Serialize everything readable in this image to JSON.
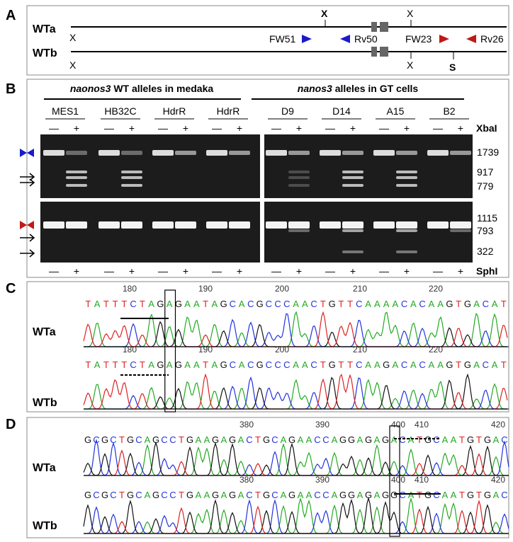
{
  "panel_a": {
    "label": "A",
    "wta": "WTa",
    "wtb": "WTb",
    "xbai_site": "X",
    "sphi_site": "S",
    "primers": [
      "FW51",
      "Rv50",
      "FW23",
      "Rv26"
    ]
  },
  "panel_b": {
    "label": "B",
    "group_left": {
      "gene": "naonos3",
      "text": "WT alleles in medaka"
    },
    "group_right": {
      "gene": "nanos3",
      "text": "alleles in GT cells"
    },
    "lanes": [
      "MES1",
      "HB32C",
      "HdrR",
      "HdrR",
      "D9",
      "D14",
      "A15",
      "B2"
    ],
    "minus": "—",
    "plus": "+",
    "enzyme_top": "XbaI",
    "enzyme_bottom": "SphI",
    "sizes_top": [
      1739,
      917,
      779
    ],
    "sizes_bottom": [
      1115,
      793,
      322
    ]
  },
  "panel_c": {
    "label": "C",
    "wta": "WTa",
    "wtb": "WTb",
    "ticks_a": [
      180,
      190,
      200,
      210,
      220
    ],
    "seq_a": "TATTTCTAGAGAATAGCACGCCCAACTGTTCAAAACACAAGTGACAT",
    "ticks_b": [
      180,
      190,
      200,
      210,
      220
    ],
    "seq_b": "TATTTCTAGAGAATAGCACGCCCAACTGTTCAAGACACAAGTGACAT"
  },
  "panel_d": {
    "label": "D",
    "wta": "WTa",
    "wtb": "WTb",
    "ticks_a": [
      380,
      390,
      400,
      410,
      420
    ],
    "seq_a": "GCGCTGCAGCCTGAAGAGACTGCAGAACCAGGAGAGACATGCAATGTGAC",
    "ticks_b": [
      380,
      390,
      400,
      410,
      420
    ],
    "seq_b": "GCGCTGCAGCCTGAAGAGACTGCAGAACCAGGAGAGGCATGCAATGTGAC"
  }
}
